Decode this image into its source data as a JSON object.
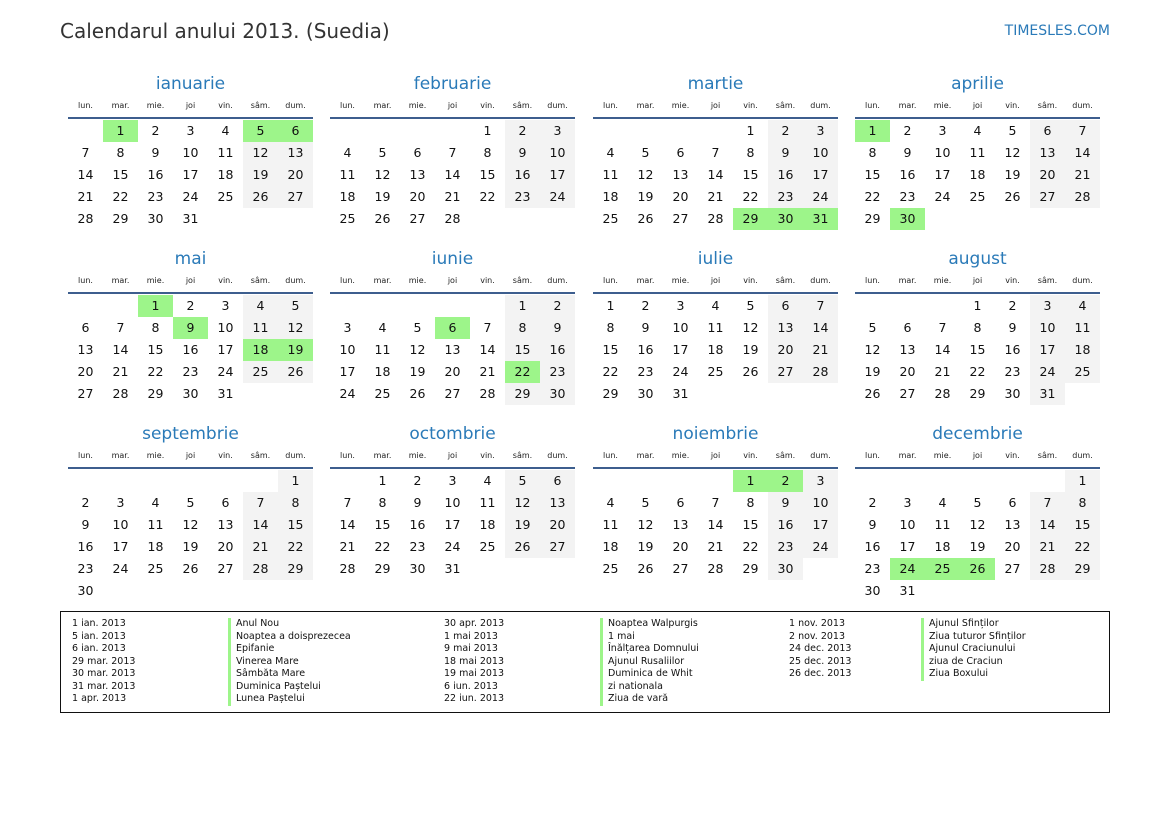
{
  "header": {
    "title": "Calendarul anului 2013. (Suedia)",
    "brand": "TIMESLES.COM"
  },
  "weekdays": [
    "lun.",
    "mar.",
    "mie.",
    "joi",
    "vin.",
    "sâm.",
    "dum."
  ],
  "colors": {
    "accent": "#2a7ab8",
    "holiday": "#9df58a",
    "weekend": "#f3f3f3",
    "rule": "#3d5e8e"
  },
  "months": [
    {
      "name": "ianuarie",
      "offset": 1,
      "days": 31,
      "holidays": [
        1,
        5,
        6
      ]
    },
    {
      "name": "februarie",
      "offset": 4,
      "days": 28,
      "holidays": []
    },
    {
      "name": "martie",
      "offset": 4,
      "days": 31,
      "holidays": [
        29,
        30,
        31
      ]
    },
    {
      "name": "aprilie",
      "offset": 0,
      "days": 30,
      "holidays": [
        1,
        30
      ]
    },
    {
      "name": "mai",
      "offset": 2,
      "days": 31,
      "holidays": [
        1,
        9,
        18,
        19
      ]
    },
    {
      "name": "iunie",
      "offset": 5,
      "days": 30,
      "holidays": [
        6,
        22
      ]
    },
    {
      "name": "iulie",
      "offset": 0,
      "days": 31,
      "holidays": []
    },
    {
      "name": "august",
      "offset": 3,
      "days": 31,
      "holidays": []
    },
    {
      "name": "septembrie",
      "offset": 6,
      "days": 30,
      "holidays": []
    },
    {
      "name": "octombrie",
      "offset": 1,
      "days": 31,
      "holidays": []
    },
    {
      "name": "noiembrie",
      "offset": 4,
      "days": 30,
      "holidays": [
        1,
        2
      ]
    },
    {
      "name": "decembrie",
      "offset": 6,
      "days": 31,
      "holidays": [
        24,
        25,
        26
      ]
    }
  ],
  "legend": [
    {
      "dates": [
        "1 ian. 2013",
        "5 ian. 2013",
        "6 ian. 2013",
        "29 mar. 2013",
        "30 mar. 2013",
        "31 mar. 2013",
        "1 apr. 2013"
      ],
      "names": [
        "Anul Nou",
        "Noaptea a doisprezecea",
        "Epifanie",
        "Vinerea Mare",
        "Sâmbăta Mare",
        "Duminica Paștelui",
        "Lunea Paștelui"
      ]
    },
    {
      "dates": [
        "30 apr. 2013",
        "1 mai 2013",
        "9 mai 2013",
        "18 mai 2013",
        "19 mai 2013",
        "6 iun. 2013",
        "22 iun. 2013"
      ],
      "names": [
        "Noaptea Walpurgis",
        "1 mai",
        "Înălțarea Domnului",
        "Ajunul Rusaliilor",
        "Duminica de Whit",
        "zi nationala",
        "Ziua de vară"
      ]
    },
    {
      "dates": [
        "1 nov. 2013",
        "2 nov. 2013",
        "24 dec. 2013",
        "25 dec. 2013",
        "26 dec. 2013"
      ],
      "names": [
        "Ajunul Sfinților",
        "Ziua tuturor Sfinților",
        "Ajunul Craciunului",
        "ziua de Craciun",
        "Ziua Boxului"
      ]
    }
  ]
}
